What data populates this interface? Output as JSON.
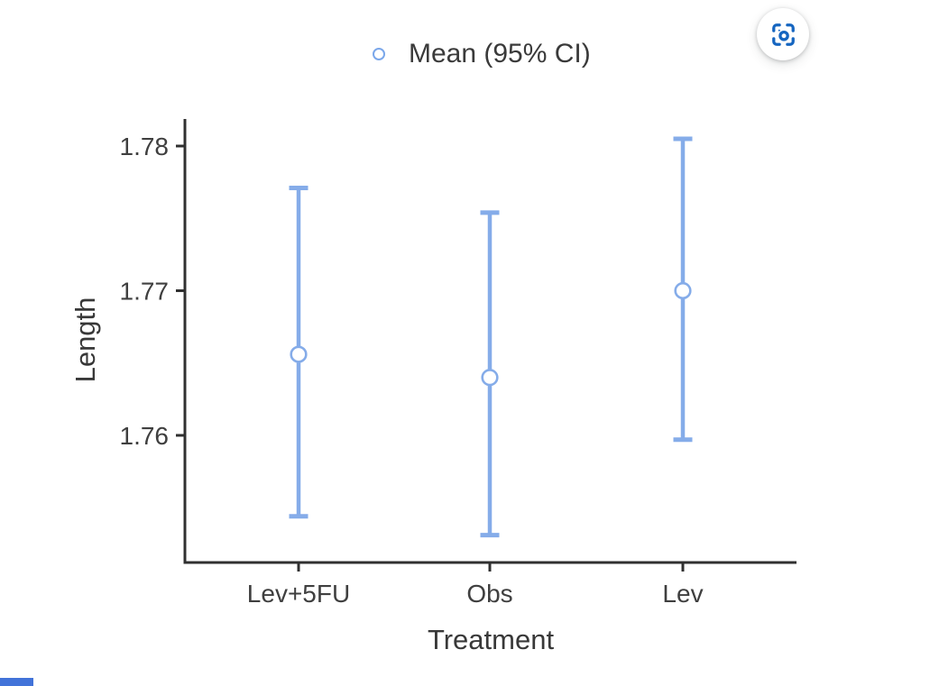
{
  "legend": {
    "label": "Mean (95% CI)"
  },
  "icons": {
    "screenshot": "camera-capture-icon",
    "legend_marker": "open-circle-icon"
  },
  "colors": {
    "series_blue": "#85ace9",
    "marker_fill": "#ffffff",
    "icon_blue": "#1565c0",
    "axis": "#303030",
    "tick_text": "#3f3f3f",
    "label_text": "#383838",
    "loadbar_blue": "#4273d9"
  },
  "chart_data": {
    "type": "scatter",
    "subtype": "errorbar",
    "title": "",
    "xlabel": "Treatment",
    "ylabel": "Length",
    "categories": [
      "Lev+5FU",
      "Obs",
      "Lev"
    ],
    "series": [
      {
        "name": "Mean (95% CI)",
        "means": [
          1.7656,
          1.764,
          1.77
        ],
        "ci_lower": [
          1.7544,
          1.7531,
          1.7597
        ],
        "ci_upper": [
          1.7771,
          1.7754,
          1.7805
        ]
      }
    ],
    "yticks": [
      1.78,
      1.77,
      1.76
    ],
    "ytick_labels": [
      "1.78",
      "1.77",
      "1.76"
    ],
    "ylim": [
      1.75121,
      1.78187
    ],
    "grid": false,
    "legend_label": "Mean (95% CI)",
    "legend_position": "top-center",
    "marker": "open-circle"
  }
}
